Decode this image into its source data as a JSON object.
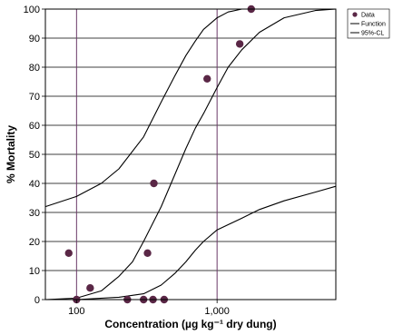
{
  "chart_data": {
    "type": "scatter",
    "xlabel": "Concentration (µg kg⁻¹ dry dung)",
    "ylabel": "% Mortality",
    "xscale": "log",
    "xlim": [
      60,
      7000
    ],
    "ylim": [
      0,
      100
    ],
    "x_ticks": [
      100,
      1000
    ],
    "x_tick_labels": [
      "100",
      "1,000"
    ],
    "y_ticks": [
      0,
      10,
      20,
      30,
      40,
      50,
      60,
      70,
      80,
      90,
      100
    ],
    "grid": "horizontal lines at every 10%; vertical lines at 100 and 1,000",
    "legend_position": "top-right, outside plot",
    "series": [
      {
        "name": "Data",
        "kind": "points",
        "color": "#5a2746",
        "points": [
          {
            "x": 88,
            "y": 16
          },
          {
            "x": 100,
            "y": 0
          },
          {
            "x": 125,
            "y": 4
          },
          {
            "x": 230,
            "y": 0
          },
          {
            "x": 300,
            "y": 0
          },
          {
            "x": 320,
            "y": 16
          },
          {
            "x": 350,
            "y": 0
          },
          {
            "x": 355,
            "y": 40
          },
          {
            "x": 420,
            "y": 0
          },
          {
            "x": 850,
            "y": 76
          },
          {
            "x": 1450,
            "y": 88
          },
          {
            "x": 1750,
            "y": 100
          }
        ]
      },
      {
        "name": "Function",
        "kind": "line",
        "color": "#000000",
        "points": [
          {
            "x": 60,
            "y": 0
          },
          {
            "x": 100,
            "y": 0.5
          },
          {
            "x": 150,
            "y": 3
          },
          {
            "x": 200,
            "y": 8
          },
          {
            "x": 250,
            "y": 13
          },
          {
            "x": 300,
            "y": 20
          },
          {
            "x": 400,
            "y": 32
          },
          {
            "x": 500,
            "y": 43
          },
          {
            "x": 600,
            "y": 52
          },
          {
            "x": 700,
            "y": 59
          },
          {
            "x": 800,
            "y": 64
          },
          {
            "x": 1000,
            "y": 73
          },
          {
            "x": 1200,
            "y": 80
          },
          {
            "x": 1500,
            "y": 86
          },
          {
            "x": 2000,
            "y": 92
          },
          {
            "x": 3000,
            "y": 97
          },
          {
            "x": 5000,
            "y": 99.5
          },
          {
            "x": 7000,
            "y": 100
          }
        ]
      },
      {
        "name": "95%-CL",
        "kind": "line",
        "color": "#000000",
        "points": [
          {
            "x": 60,
            "y": 32
          },
          {
            "x": 100,
            "y": 35.5
          },
          {
            "x": 150,
            "y": 40
          },
          {
            "x": 200,
            "y": 45
          },
          {
            "x": 300,
            "y": 56
          },
          {
            "x": 400,
            "y": 68
          },
          {
            "x": 500,
            "y": 77
          },
          {
            "x": 600,
            "y": 84
          },
          {
            "x": 700,
            "y": 89
          },
          {
            "x": 800,
            "y": 93
          },
          {
            "x": 1000,
            "y": 97
          },
          {
            "x": 1200,
            "y": 99
          },
          {
            "x": 1500,
            "y": 100
          },
          {
            "x": 7000,
            "y": 100
          }
        ]
      },
      {
        "name": "95%-CL",
        "kind": "line",
        "show_in_legend": false,
        "color": "#000000",
        "points": [
          {
            "x": 60,
            "y": 0
          },
          {
            "x": 100,
            "y": 0
          },
          {
            "x": 200,
            "y": 0.8
          },
          {
            "x": 300,
            "y": 2
          },
          {
            "x": 400,
            "y": 5
          },
          {
            "x": 500,
            "y": 9
          },
          {
            "x": 600,
            "y": 13
          },
          {
            "x": 700,
            "y": 17
          },
          {
            "x": 800,
            "y": 20
          },
          {
            "x": 1000,
            "y": 24
          },
          {
            "x": 1500,
            "y": 28
          },
          {
            "x": 2000,
            "y": 31
          },
          {
            "x": 3000,
            "y": 34
          },
          {
            "x": 5000,
            "y": 37
          },
          {
            "x": 7000,
            "y": 39
          }
        ]
      }
    ]
  }
}
